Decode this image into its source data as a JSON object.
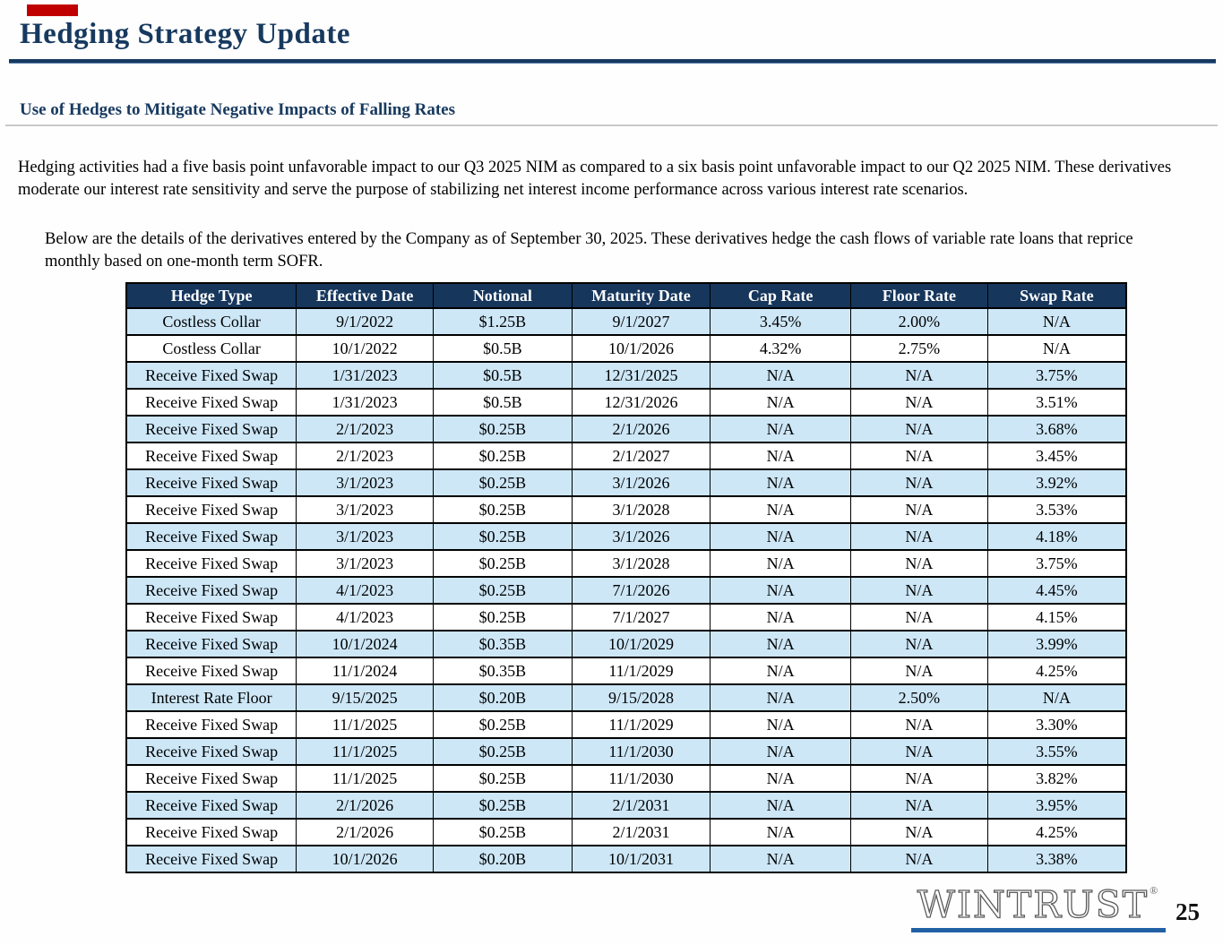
{
  "slide": {
    "title": "Hedging Strategy Update",
    "subtitle": "Use of Hedges to Mitigate Negative Impacts of Falling Rates",
    "paragraph1": "Hedging activities had a five basis point unfavorable impact to our Q3 2025 NIM as compared to a six basis point unfavorable impact to our Q2 2025 NIM. These derivatives moderate our interest rate sensitivity and serve the purpose of stabilizing net interest income performance across various interest rate scenarios.",
    "paragraph2": "Below are the details of the derivatives entered by the Company as of September 30, 2025. These derivatives hedge the cash flows of variable rate loans that reprice monthly based on one-month term SOFR.",
    "page_number": "25",
    "logo": {
      "text": "Wintrust",
      "registered": "®"
    }
  },
  "colors": {
    "navy_text": "#17395f",
    "table_header_bg": "#16365c",
    "row_light_blue": "#cde7f7",
    "subtitle_rule_gray": "#c9c9c9",
    "logo_underline_blue": "#2160a5",
    "red_marker": "#c00000"
  },
  "table": {
    "columns": [
      "Hedge Type",
      "Effective Date",
      "Notional",
      "Maturity Date",
      "Cap Rate",
      "Floor Rate",
      "Swap Rate"
    ],
    "rows": [
      [
        "Costless Collar",
        "9/1/2022",
        "$1.25B",
        "9/1/2027",
        "3.45%",
        "2.00%",
        "N/A"
      ],
      [
        "Costless Collar",
        "10/1/2022",
        "$0.5B",
        "10/1/2026",
        "4.32%",
        "2.75%",
        "N/A"
      ],
      [
        "Receive Fixed Swap",
        "1/31/2023",
        "$0.5B",
        "12/31/2025",
        "N/A",
        "N/A",
        "3.75%"
      ],
      [
        "Receive Fixed Swap",
        "1/31/2023",
        "$0.5B",
        "12/31/2026",
        "N/A",
        "N/A",
        "3.51%"
      ],
      [
        "Receive Fixed Swap",
        "2/1/2023",
        "$0.25B",
        "2/1/2026",
        "N/A",
        "N/A",
        "3.68%"
      ],
      [
        "Receive Fixed Swap",
        "2/1/2023",
        "$0.25B",
        "2/1/2027",
        "N/A",
        "N/A",
        "3.45%"
      ],
      [
        "Receive Fixed Swap",
        "3/1/2023",
        "$0.25B",
        "3/1/2026",
        "N/A",
        "N/A",
        "3.92%"
      ],
      [
        "Receive Fixed Swap",
        "3/1/2023",
        "$0.25B",
        "3/1/2028",
        "N/A",
        "N/A",
        "3.53%"
      ],
      [
        "Receive Fixed Swap",
        "3/1/2023",
        "$0.25B",
        "3/1/2026",
        "N/A",
        "N/A",
        "4.18%"
      ],
      [
        "Receive Fixed Swap",
        "3/1/2023",
        "$0.25B",
        "3/1/2028",
        "N/A",
        "N/A",
        "3.75%"
      ],
      [
        "Receive Fixed Swap",
        "4/1/2023",
        "$0.25B",
        "7/1/2026",
        "N/A",
        "N/A",
        "4.45%"
      ],
      [
        "Receive Fixed Swap",
        "4/1/2023",
        "$0.25B",
        "7/1/2027",
        "N/A",
        "N/A",
        "4.15%"
      ],
      [
        "Receive Fixed Swap",
        "10/1/2024",
        "$0.35B",
        "10/1/2029",
        "N/A",
        "N/A",
        "3.99%"
      ],
      [
        "Receive Fixed Swap",
        "11/1/2024",
        "$0.35B",
        "11/1/2029",
        "N/A",
        "N/A",
        "4.25%"
      ],
      [
        "Interest Rate Floor",
        "9/15/2025",
        "$0.20B",
        "9/15/2028",
        "N/A",
        "2.50%",
        "N/A"
      ],
      [
        "Receive Fixed Swap",
        "11/1/2025",
        "$0.25B",
        "11/1/2029",
        "N/A",
        "N/A",
        "3.30%"
      ],
      [
        "Receive Fixed Swap",
        "11/1/2025",
        "$0.25B",
        "11/1/2030",
        "N/A",
        "N/A",
        "3.55%"
      ],
      [
        "Receive Fixed Swap",
        "11/1/2025",
        "$0.25B",
        "11/1/2030",
        "N/A",
        "N/A",
        "3.82%"
      ],
      [
        "Receive Fixed Swap",
        "2/1/2026",
        "$0.25B",
        "2/1/2031",
        "N/A",
        "N/A",
        "3.95%"
      ],
      [
        "Receive Fixed Swap",
        "2/1/2026",
        "$0.25B",
        "2/1/2031",
        "N/A",
        "N/A",
        "4.25%"
      ],
      [
        "Receive Fixed Swap",
        "10/1/2026",
        "$0.20B",
        "10/1/2031",
        "N/A",
        "N/A",
        "3.38%"
      ]
    ],
    "col_widths_pct": [
      17.0,
      13.69,
      13.86,
      13.86,
      14.04,
      13.69,
      13.86
    ]
  }
}
